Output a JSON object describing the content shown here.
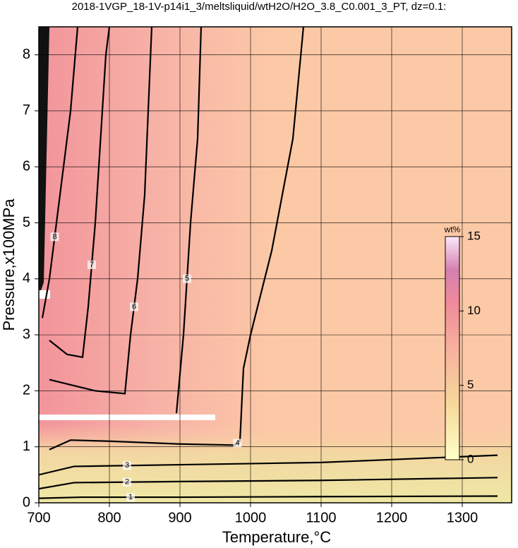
{
  "chart_data": {
    "type": "contour",
    "title": "2018-1VGP_18-1V-p14i1_3/meltsliquid/wtH2O/H2O_3.8_C0.001_3_PT, dz=0.1:",
    "x_label": "Temperature,°C",
    "y_label": "Pressure,x100MPa",
    "xlim": [
      700,
      1370
    ],
    "ylim": [
      0,
      8.5
    ],
    "xticks": [
      700,
      800,
      900,
      1000,
      1100,
      1200,
      1300
    ],
    "yticks": [
      0,
      1,
      2,
      3,
      4,
      5,
      6,
      7,
      8
    ],
    "grid": true,
    "colorbar": {
      "label": "wt%",
      "clim": [
        0,
        15
      ],
      "ticks": [
        0,
        5,
        10,
        15
      ]
    },
    "contours": [
      {
        "level": 1,
        "x": [
          700,
          760,
          900,
          1100,
          1350
        ],
        "y": [
          0.08,
          0.1,
          0.1,
          0.11,
          0.12
        ]
      },
      {
        "level": 2,
        "x": [
          700,
          750,
          900,
          1100,
          1350
        ],
        "y": [
          0.25,
          0.36,
          0.38,
          0.4,
          0.45
        ]
      },
      {
        "level": 3,
        "x": [
          700,
          750,
          900,
          1100,
          1350
        ],
        "y": [
          0.5,
          0.65,
          0.68,
          0.72,
          0.85
        ]
      },
      {
        "level": 4,
        "x": [
          715,
          745,
          800,
          900,
          978,
          985,
          990,
          1000,
          1030,
          1060,
          1075
        ],
        "y": [
          0.95,
          1.12,
          1.1,
          1.05,
          1.03,
          1.1,
          2.4,
          3.0,
          4.5,
          6.5,
          8.5
        ]
      },
      {
        "level": 5,
        "x": [
          895,
          905,
          915,
          925,
          930
        ],
        "y": [
          1.6,
          3.0,
          5.0,
          6.5,
          8.5
        ]
      },
      {
        "level": 6,
        "x": [
          715,
          780,
          822,
          830,
          840,
          850,
          855,
          860
        ],
        "y": [
          2.2,
          2.0,
          1.95,
          3.0,
          4.0,
          5.5,
          7.0,
          8.5
        ]
      },
      {
        "level": 7,
        "x": [
          715,
          740,
          762,
          770,
          780,
          790,
          795,
          800
        ],
        "y": [
          2.9,
          2.65,
          2.6,
          3.5,
          5.0,
          7.0,
          8.0,
          8.5
        ]
      },
      {
        "level": 8,
        "x": [
          705,
          715,
          730,
          745,
          755
        ],
        "y": [
          3.3,
          4.0,
          5.5,
          7.0,
          8.5
        ]
      }
    ]
  }
}
